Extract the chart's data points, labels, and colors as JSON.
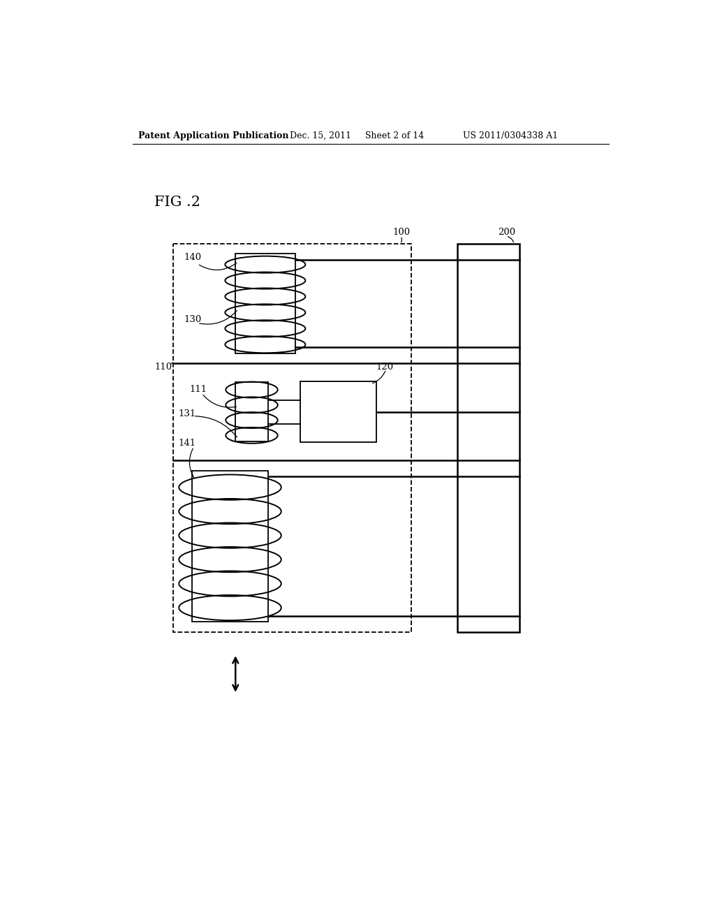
{
  "bg_color": "#ffffff",
  "title_header": "Patent Application Publication",
  "title_date": "Dec. 15, 2011",
  "title_sheet": "Sheet 2 of 14",
  "title_patent": "US 2011/0304338 A1",
  "fig_label": "FIG .2",
  "lw": 1.3,
  "lw_thick": 1.8,
  "lw_coil": 1.4
}
